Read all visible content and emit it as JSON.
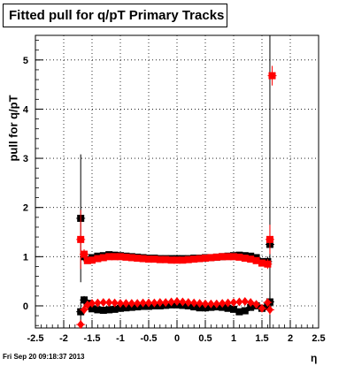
{
  "title": "Fitted pull for q/pT  Primary Tracks",
  "footer": "Fri Sep 20 09:18:37 2013",
  "chart_data": {
    "type": "scatter",
    "title": "Fitted pull for q/pT  Primary Tracks",
    "xlabel": "η",
    "ylabel": "pull for q/pT",
    "xlim": [
      -2.5,
      2.5
    ],
    "ylim": [
      -0.45,
      5.5
    ],
    "grid": true,
    "xticks": [
      "-2.5",
      "-2",
      "-1.5",
      "-1",
      "-0.5",
      "0",
      "0.5",
      "1",
      "1.5",
      "2",
      "2.5"
    ],
    "yticks": [
      "0",
      "1",
      "2",
      "3",
      "4",
      "5"
    ],
    "series": [
      {
        "color": "#000000",
        "marker": "square",
        "x": [
          -1.7,
          -1.64,
          -1.58,
          -1.5,
          -1.4,
          -1.3,
          -1.2,
          -1.1,
          -1.0,
          -0.9,
          -0.8,
          -0.7,
          -0.6,
          -0.5,
          -0.4,
          -0.3,
          -0.2,
          -0.1,
          0.0,
          0.1,
          0.2,
          0.3,
          0.4,
          0.5,
          0.6,
          0.7,
          0.8,
          0.9,
          1.0,
          1.1,
          1.2,
          1.3,
          1.4,
          1.5,
          1.6,
          1.64
        ],
        "y": [
          1.78,
          1.0,
          0.93,
          0.98,
          1.01,
          1.02,
          1.04,
          1.03,
          1.02,
          1.01,
          1.0,
          0.99,
          0.98,
          0.97,
          0.97,
          0.96,
          0.96,
          0.96,
          0.96,
          0.96,
          0.96,
          0.97,
          0.97,
          0.98,
          0.98,
          0.99,
          1.0,
          1.01,
          1.02,
          1.03,
          1.02,
          1.01,
          0.98,
          0.9,
          0.9,
          1.25
        ],
        "err": [
          1.3,
          0.1,
          0.06,
          0.03,
          0.02,
          0.02,
          0.02,
          0.02,
          0.02,
          0.02,
          0.02,
          0.02,
          0.02,
          0.02,
          0.02,
          0.02,
          0.02,
          0.02,
          0.02,
          0.02,
          0.02,
          0.02,
          0.02,
          0.02,
          0.02,
          0.02,
          0.02,
          0.02,
          0.02,
          0.02,
          0.02,
          0.02,
          0.03,
          0.06,
          0.1,
          5.5
        ]
      },
      {
        "color": "#ff0000",
        "marker": "square",
        "x": [
          -1.7,
          -1.64,
          -1.58,
          -1.5,
          -1.4,
          -1.3,
          -1.2,
          -1.1,
          -1.0,
          -0.9,
          -0.8,
          -0.7,
          -0.6,
          -0.5,
          -0.4,
          -0.3,
          -0.2,
          -0.1,
          0.0,
          0.1,
          0.2,
          0.3,
          0.4,
          0.5,
          0.6,
          0.7,
          0.8,
          0.9,
          1.0,
          1.1,
          1.2,
          1.3,
          1.4,
          1.5,
          1.6,
          1.64,
          1.68
        ],
        "y": [
          1.35,
          1.05,
          0.92,
          0.93,
          0.96,
          0.98,
          1.0,
          1.0,
          1.0,
          0.99,
          0.98,
          0.97,
          0.96,
          0.95,
          0.95,
          0.94,
          0.94,
          0.93,
          0.93,
          0.93,
          0.94,
          0.95,
          0.96,
          0.97,
          0.98,
          0.99,
          1.0,
          1.0,
          1.0,
          0.99,
          0.97,
          0.95,
          0.92,
          0.87,
          0.85,
          1.35,
          4.68
        ],
        "err": [
          0.6,
          0.1,
          0.06,
          0.03,
          0.02,
          0.02,
          0.02,
          0.02,
          0.02,
          0.02,
          0.02,
          0.02,
          0.02,
          0.02,
          0.02,
          0.02,
          0.02,
          0.02,
          0.02,
          0.02,
          0.02,
          0.02,
          0.02,
          0.02,
          0.02,
          0.02,
          0.02,
          0.02,
          0.02,
          0.02,
          0.02,
          0.02,
          0.03,
          0.06,
          0.1,
          0.3,
          0.2
        ]
      },
      {
        "color": "#000000",
        "marker": "square",
        "x": [
          -1.7,
          -1.64,
          -1.58,
          -1.5,
          -1.4,
          -1.3,
          -1.2,
          -1.1,
          -1.0,
          -0.9,
          -0.8,
          -0.7,
          -0.6,
          -0.5,
          -0.4,
          -0.3,
          -0.2,
          -0.1,
          0.0,
          0.1,
          0.2,
          0.3,
          0.4,
          0.5,
          0.6,
          0.7,
          0.8,
          0.9,
          1.0,
          1.1,
          1.2,
          1.3,
          1.4,
          1.5,
          1.6,
          1.64
        ],
        "y": [
          -0.12,
          0.12,
          0.05,
          -0.06,
          -0.08,
          -0.09,
          -0.08,
          -0.07,
          -0.05,
          -0.04,
          -0.03,
          -0.02,
          -0.01,
          -0.01,
          0.0,
          0.0,
          0.01,
          0.02,
          0.02,
          0.01,
          0.0,
          -0.02,
          -0.04,
          -0.04,
          -0.03,
          -0.02,
          -0.03,
          -0.05,
          -0.07,
          -0.12,
          -0.1,
          -0.03,
          0.0,
          -0.05,
          0.0,
          0.08
        ],
        "err": [
          0.2,
          0.08,
          0.05,
          0.03,
          0.02,
          0.02,
          0.02,
          0.02,
          0.02,
          0.02,
          0.02,
          0.02,
          0.02,
          0.02,
          0.02,
          0.02,
          0.02,
          0.02,
          0.02,
          0.02,
          0.02,
          0.02,
          0.02,
          0.02,
          0.02,
          0.02,
          0.02,
          0.02,
          0.02,
          0.02,
          0.02,
          0.02,
          0.03,
          0.05,
          0.08,
          0.2
        ]
      },
      {
        "color": "#ff0000",
        "marker": "diamond",
        "x": [
          -1.7,
          -1.64,
          -1.58,
          -1.5,
          -1.4,
          -1.3,
          -1.2,
          -1.1,
          -1.0,
          -0.9,
          -0.8,
          -0.7,
          -0.6,
          -0.5,
          -0.4,
          -0.3,
          -0.2,
          -0.1,
          0.0,
          0.1,
          0.2,
          0.3,
          0.4,
          0.5,
          0.6,
          0.7,
          0.8,
          0.9,
          1.0,
          1.1,
          1.2,
          1.3,
          1.4,
          1.5,
          1.6,
          1.64
        ],
        "y": [
          -0.38,
          -0.08,
          0.02,
          0.05,
          0.06,
          0.07,
          0.07,
          0.06,
          0.05,
          0.05,
          0.05,
          0.05,
          0.06,
          0.06,
          0.06,
          0.07,
          0.07,
          0.08,
          0.09,
          0.08,
          0.07,
          0.06,
          0.05,
          0.04,
          0.04,
          0.04,
          0.05,
          0.06,
          0.07,
          0.08,
          0.09,
          0.07,
          0.03,
          -0.05,
          0.07,
          -0.08
        ],
        "err": [
          0.1,
          0.08,
          0.05,
          0.03,
          0.02,
          0.02,
          0.02,
          0.02,
          0.02,
          0.02,
          0.02,
          0.02,
          0.02,
          0.02,
          0.02,
          0.02,
          0.02,
          0.02,
          0.02,
          0.02,
          0.02,
          0.02,
          0.02,
          0.02,
          0.02,
          0.02,
          0.02,
          0.02,
          0.02,
          0.02,
          0.02,
          0.02,
          0.03,
          0.05,
          0.08,
          0.1
        ]
      }
    ]
  }
}
